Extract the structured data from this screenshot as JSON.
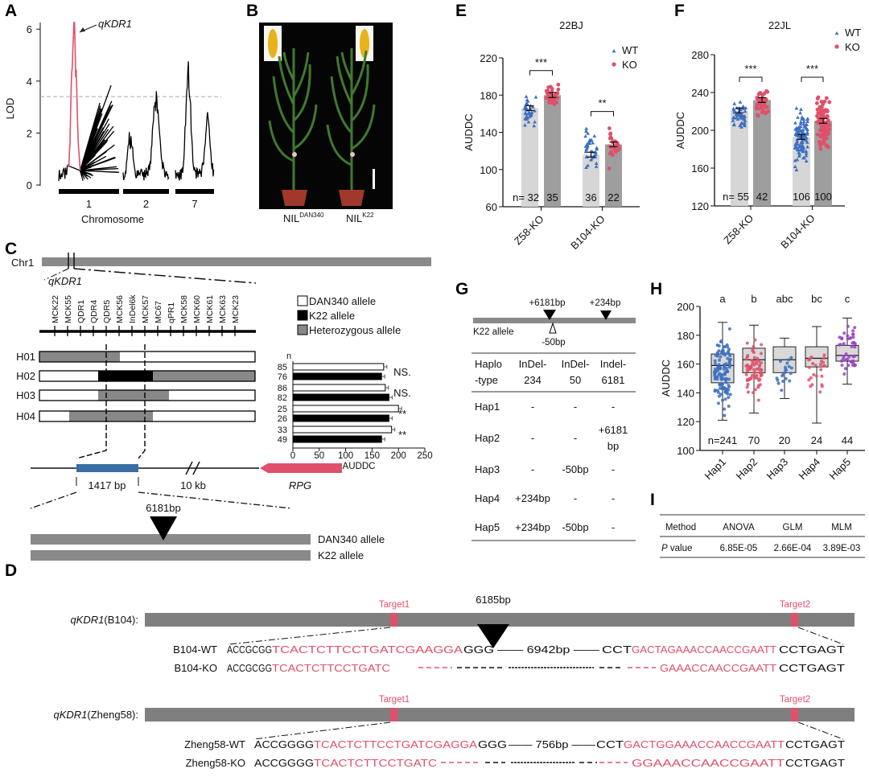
{
  "panel_labels": {
    "a": "A",
    "b": "B",
    "c": "C",
    "d": "D",
    "e": "E",
    "f": "F",
    "g": "G",
    "h": "H",
    "i": "I"
  },
  "colors": {
    "wt": "#3d6fc0",
    "ko": "#e0506a",
    "hap5": "#9b3fc4",
    "peak": "#e0506a",
    "gene": "#3a6ea5",
    "rpg": "#e0506a"
  },
  "panel_b": {
    "nil1_base": "NIL",
    "nil1_sup": "DAN340",
    "nil2_base": "NIL",
    "nil2_sup": "K22"
  },
  "panel_c": {
    "chr_label": "Chr1",
    "qtl_label": "qKDR1",
    "markers": [
      "MCK22",
      "MCK55",
      "QDR1",
      "QDR4",
      "QDR5",
      "MCK56",
      "InDel6k",
      "MCK57",
      "MC67",
      "qPR1",
      "MCK58",
      "MCK60",
      "MCK61",
      "MCK63",
      "MCK23"
    ],
    "legend": [
      "DAN340 allele",
      "K22 allele",
      "Heterozygous allele"
    ],
    "haplotypes": [
      "H01",
      "H02",
      "H03",
      "H04"
    ],
    "n_header": "n",
    "gene": {
      "size1": "1417 bp",
      "gap": "10 kb",
      "rpg": "RPG",
      "insertion": "6181bp",
      "allele1": "DAN340 allele",
      "allele2": "K22 allele"
    }
  },
  "panel_d": {
    "b104": {
      "label_gene": "qKDR1",
      "label_bg": "(B104):",
      "target1": "Target1",
      "target2": "Target2",
      "insertion": "6185bp",
      "wt_label": "B104-WT",
      "ko_label": "B104-KO",
      "wt": [
        "ACCGCGG",
        "TCACTCTTCCTGATCGAAGGA",
        "GGG",
        "—— 6942bp ——",
        "CCT",
        "GACTAGAAACCAACCGAATT",
        "CCTGAGT"
      ],
      "ko": [
        "ACCGCGG",
        "TCACTCTTCCTGATC",
        "GAAACCAACCGAATT",
        "CCTGAGT"
      ]
    },
    "z58": {
      "label_gene": "qKDR1",
      "label_bg": "(Zheng58):",
      "target1": "Target1",
      "target2": "Target2",
      "wt_label": "Zheng58-WT",
      "ko_label": "Zheng58-KO",
      "wt": [
        "ACCGGGG",
        "TCACTCTTCCTGATCGAGGA",
        "GGG",
        "—— 756bp ——",
        "CCT",
        "GACTGGAAACCAACCGAATT",
        "CCTGAGT"
      ],
      "ko": [
        "ACCGGGG",
        "TCACTCTTCCTGATC",
        "GGAAACCAACCGAATT",
        "CCTGAGT"
      ]
    }
  },
  "panel_g": {
    "insert1": "+6181bp",
    "insert2": "+234bp",
    "deletion": "-50bp",
    "allele": "K22 allele",
    "header": [
      [
        "Haplo",
        "-type"
      ],
      [
        "InDel-",
        "234"
      ],
      [
        "InDel-",
        "50"
      ],
      [
        "Indel-",
        "6181"
      ]
    ],
    "rows": [
      [
        "Hap1",
        "-",
        "-",
        "-"
      ],
      [
        "Hap2",
        "-",
        "-",
        "+6181 bp"
      ],
      [
        "Hap3",
        "-",
        "-50bp",
        "-"
      ],
      [
        "Hap4",
        "+234bp",
        "-",
        "-"
      ],
      [
        "Hap5",
        "+234bp",
        "-50bp",
        "-"
      ]
    ]
  },
  "panel_i": {
    "header": [
      "Method",
      "ANOVA",
      "GLM",
      "MLM"
    ],
    "p_italic": "P",
    "p_rest": " value",
    "values": [
      "6.85E-05",
      "2.66E-04",
      "3.89E-03"
    ]
  },
  "chart_data": [
    {
      "type": "line",
      "panel": "A",
      "xlabel": "Chromosome",
      "ylabel": "LOD",
      "yticks": [
        0,
        2,
        4,
        6
      ],
      "ylim": [
        0,
        6.5
      ],
      "categories": [
        "1",
        "2",
        "7"
      ],
      "threshold": 3.4,
      "peak": {
        "label": "qKDR1",
        "chromosome": "1",
        "lod": 6.2
      },
      "chr_peaks": {
        "1": 6.2,
        "2": 3.0,
        "7": 4.2
      },
      "grid": false
    },
    {
      "type": "bar",
      "panel": "C",
      "orientation": "horizontal",
      "xlabel": "AUDDC",
      "xticks": [
        0,
        50,
        100,
        150,
        200,
        250
      ],
      "xlim": [
        0,
        250
      ],
      "categories": [
        "H01",
        "H02",
        "H03",
        "H04"
      ],
      "series": [
        {
          "name": "DAN340 allele",
          "values": [
            172,
            175,
            200,
            187
          ],
          "n": [
            85,
            86,
            25,
            33
          ]
        },
        {
          "name": "K22 allele",
          "values": [
            168,
            182,
            182,
            168
          ],
          "n": [
            76,
            82,
            26,
            49
          ]
        }
      ],
      "significance": [
        "NS.",
        "NS.",
        "**",
        "**"
      ]
    },
    {
      "type": "bar",
      "panel": "E",
      "title": "22BJ",
      "ylabel": "AUDDC",
      "ylim": [
        60,
        220
      ],
      "yticks": [
        60,
        100,
        140,
        180,
        220
      ],
      "categories": [
        "Z58-KO",
        "B104-KO"
      ],
      "n_prefix": "n=",
      "series": [
        {
          "name": "WT",
          "values": [
            166,
            116
          ],
          "n": [
            32,
            36
          ],
          "range": [
            [
              141,
              188
            ],
            [
              90,
              151
            ]
          ]
        },
        {
          "name": "KO",
          "values": [
            180,
            127
          ],
          "n": [
            35,
            22
          ],
          "range": [
            [
              165,
              196
            ],
            [
              98,
              152
            ]
          ]
        }
      ],
      "significance": [
        "***",
        "**"
      ],
      "legend": "top-right"
    },
    {
      "type": "bar",
      "panel": "F",
      "title": "22JL",
      "ylabel": "AUDDC",
      "ylim": [
        120,
        280
      ],
      "yticks": [
        120,
        160,
        200,
        240,
        280
      ],
      "categories": [
        "Z58-KO",
        "B104-KO"
      ],
      "n_prefix": "n=",
      "series": [
        {
          "name": "WT",
          "values": [
            221,
            193
          ],
          "n": [
            55,
            106
          ],
          "range": [
            [
              196,
              238
            ],
            [
              152,
              234
            ]
          ]
        },
        {
          "name": "KO",
          "values": [
            232,
            210
          ],
          "n": [
            42,
            100
          ],
          "range": [
            [
              209,
              246
            ],
            [
              166,
              246
            ]
          ]
        }
      ],
      "significance": [
        "***",
        "***"
      ],
      "legend": "top-right"
    },
    {
      "type": "box",
      "panel": "H",
      "ylabel": "AUDDC",
      "ylim": [
        100,
        200
      ],
      "yticks": [
        100,
        120,
        140,
        160,
        180,
        200
      ],
      "categories": [
        "Hap1",
        "Hap2",
        "Hap3",
        "Hap4",
        "Hap5"
      ],
      "n_prefix": "n=",
      "n": [
        241,
        70,
        20,
        24,
        44
      ],
      "letters": [
        "a",
        "b",
        "abc",
        "bc",
        "c"
      ],
      "stats": [
        {
          "min": 121,
          "q1": 147,
          "median": 159,
          "q3": 167,
          "max": 189
        },
        {
          "min": 126,
          "q1": 154,
          "median": 163,
          "q3": 171,
          "max": 187
        },
        {
          "min": 136,
          "q1": 154,
          "median": 163,
          "q3": 172,
          "max": 178
        },
        {
          "min": 119,
          "q1": 158,
          "median": 164,
          "q3": 172,
          "max": 186
        },
        {
          "min": 146,
          "q1": 162,
          "median": 166,
          "q3": 173,
          "max": 192
        }
      ]
    }
  ]
}
